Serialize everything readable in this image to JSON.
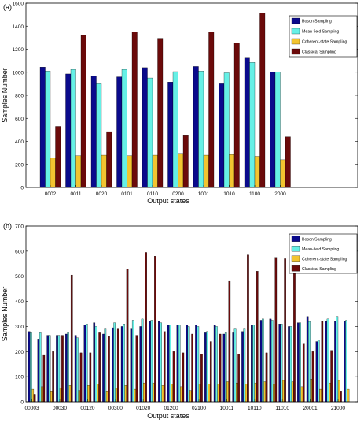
{
  "colors": {
    "boson": "#0a0a8c",
    "meanfield": "#66f0e6",
    "coherent": "#f2c430",
    "classical": "#6b0a0a",
    "axis": "#000000"
  },
  "chart_data": [
    {
      "type": "bar",
      "panel_label": "(a)",
      "xlabel": "Output states",
      "ylabel": "Samples Number",
      "ylim": [
        0,
        1600
      ],
      "yticks": [
        0,
        200,
        400,
        600,
        800,
        1000,
        1200,
        1400,
        1600
      ],
      "grid": false,
      "legend_position": "top-right",
      "categories": [
        "0002",
        "0011",
        "0020",
        "0101",
        "0110",
        "0200",
        "1001",
        "1010",
        "1100",
        "2000"
      ],
      "series": [
        {
          "name": "Boson Sampling",
          "color_key": "boson",
          "values": [
            1045,
            985,
            965,
            960,
            1040,
            915,
            1050,
            900,
            1130,
            1000
          ]
        },
        {
          "name": "Mean-field Sampling",
          "color_key": "meanfield",
          "values": [
            1010,
            1025,
            900,
            1025,
            950,
            1005,
            1010,
            995,
            1085,
            1000
          ]
        },
        {
          "name": "Coherent-state Sampling",
          "color_key": "coherent",
          "values": [
            255,
            275,
            280,
            275,
            280,
            295,
            280,
            285,
            270,
            240
          ]
        },
        {
          "name": "Classical Sampling",
          "color_key": "classical",
          "values": [
            530,
            1320,
            485,
            1350,
            1295,
            450,
            1350,
            1255,
            1515,
            440
          ]
        }
      ]
    },
    {
      "type": "bar",
      "panel_label": "(b)",
      "xlabel": "Output states",
      "ylabel": "Samples Number",
      "ylim": [
        0,
        700
      ],
      "yticks": [
        0,
        100,
        200,
        300,
        400,
        500,
        600,
        700
      ],
      "grid": false,
      "legend_position": "top-right",
      "tick_labels": [
        "00003",
        "00030",
        "00120",
        "00300",
        "01020",
        "01200",
        "02100",
        "10011",
        "10110",
        "11010",
        "20001",
        "21000"
      ],
      "tick_label_indices": [
        0,
        3,
        6,
        9,
        12,
        15,
        18,
        21,
        24,
        27,
        30,
        33
      ],
      "categories_count": 35,
      "series": [
        {
          "name": "Boson Sampling",
          "color_key": "boson",
          "values": [
            280,
            250,
            265,
            265,
            270,
            265,
            305,
            315,
            270,
            295,
            300,
            290,
            300,
            320,
            320,
            305,
            305,
            305,
            305,
            275,
            305,
            270,
            275,
            280,
            305,
            325,
            330,
            310,
            300,
            315,
            340,
            240,
            320,
            320,
            320
          ]
        },
        {
          "name": "Mean-field Sampling",
          "color_key": "meanfield",
          "values": [
            275,
            275,
            265,
            265,
            275,
            255,
            310,
            300,
            290,
            315,
            310,
            325,
            330,
            325,
            315,
            305,
            305,
            300,
            300,
            280,
            300,
            275,
            290,
            290,
            305,
            330,
            325,
            310,
            300,
            315,
            320,
            245,
            330,
            340,
            325
          ]
        },
        {
          "name": "Coherent-state Sampling",
          "color_key": "coherent",
          "values": [
            50,
            60,
            40,
            55,
            65,
            45,
            65,
            70,
            40,
            55,
            65,
            50,
            75,
            75,
            65,
            70,
            60,
            45,
            70,
            70,
            70,
            80,
            75,
            70,
            75,
            80,
            70,
            85,
            80,
            60,
            90,
            50,
            75,
            85,
            50
          ]
        },
        {
          "name": "Classical Sampling",
          "color_key": "classical",
          "values": [
            30,
            185,
            200,
            265,
            505,
            195,
            195,
            275,
            260,
            290,
            530,
            265,
            595,
            580,
            280,
            200,
            195,
            270,
            190,
            240,
            270,
            480,
            190,
            585,
            520,
            195,
            575,
            570,
            625,
            230,
            200,
            320,
            205,
            40,
            0
          ]
        }
      ]
    }
  ]
}
